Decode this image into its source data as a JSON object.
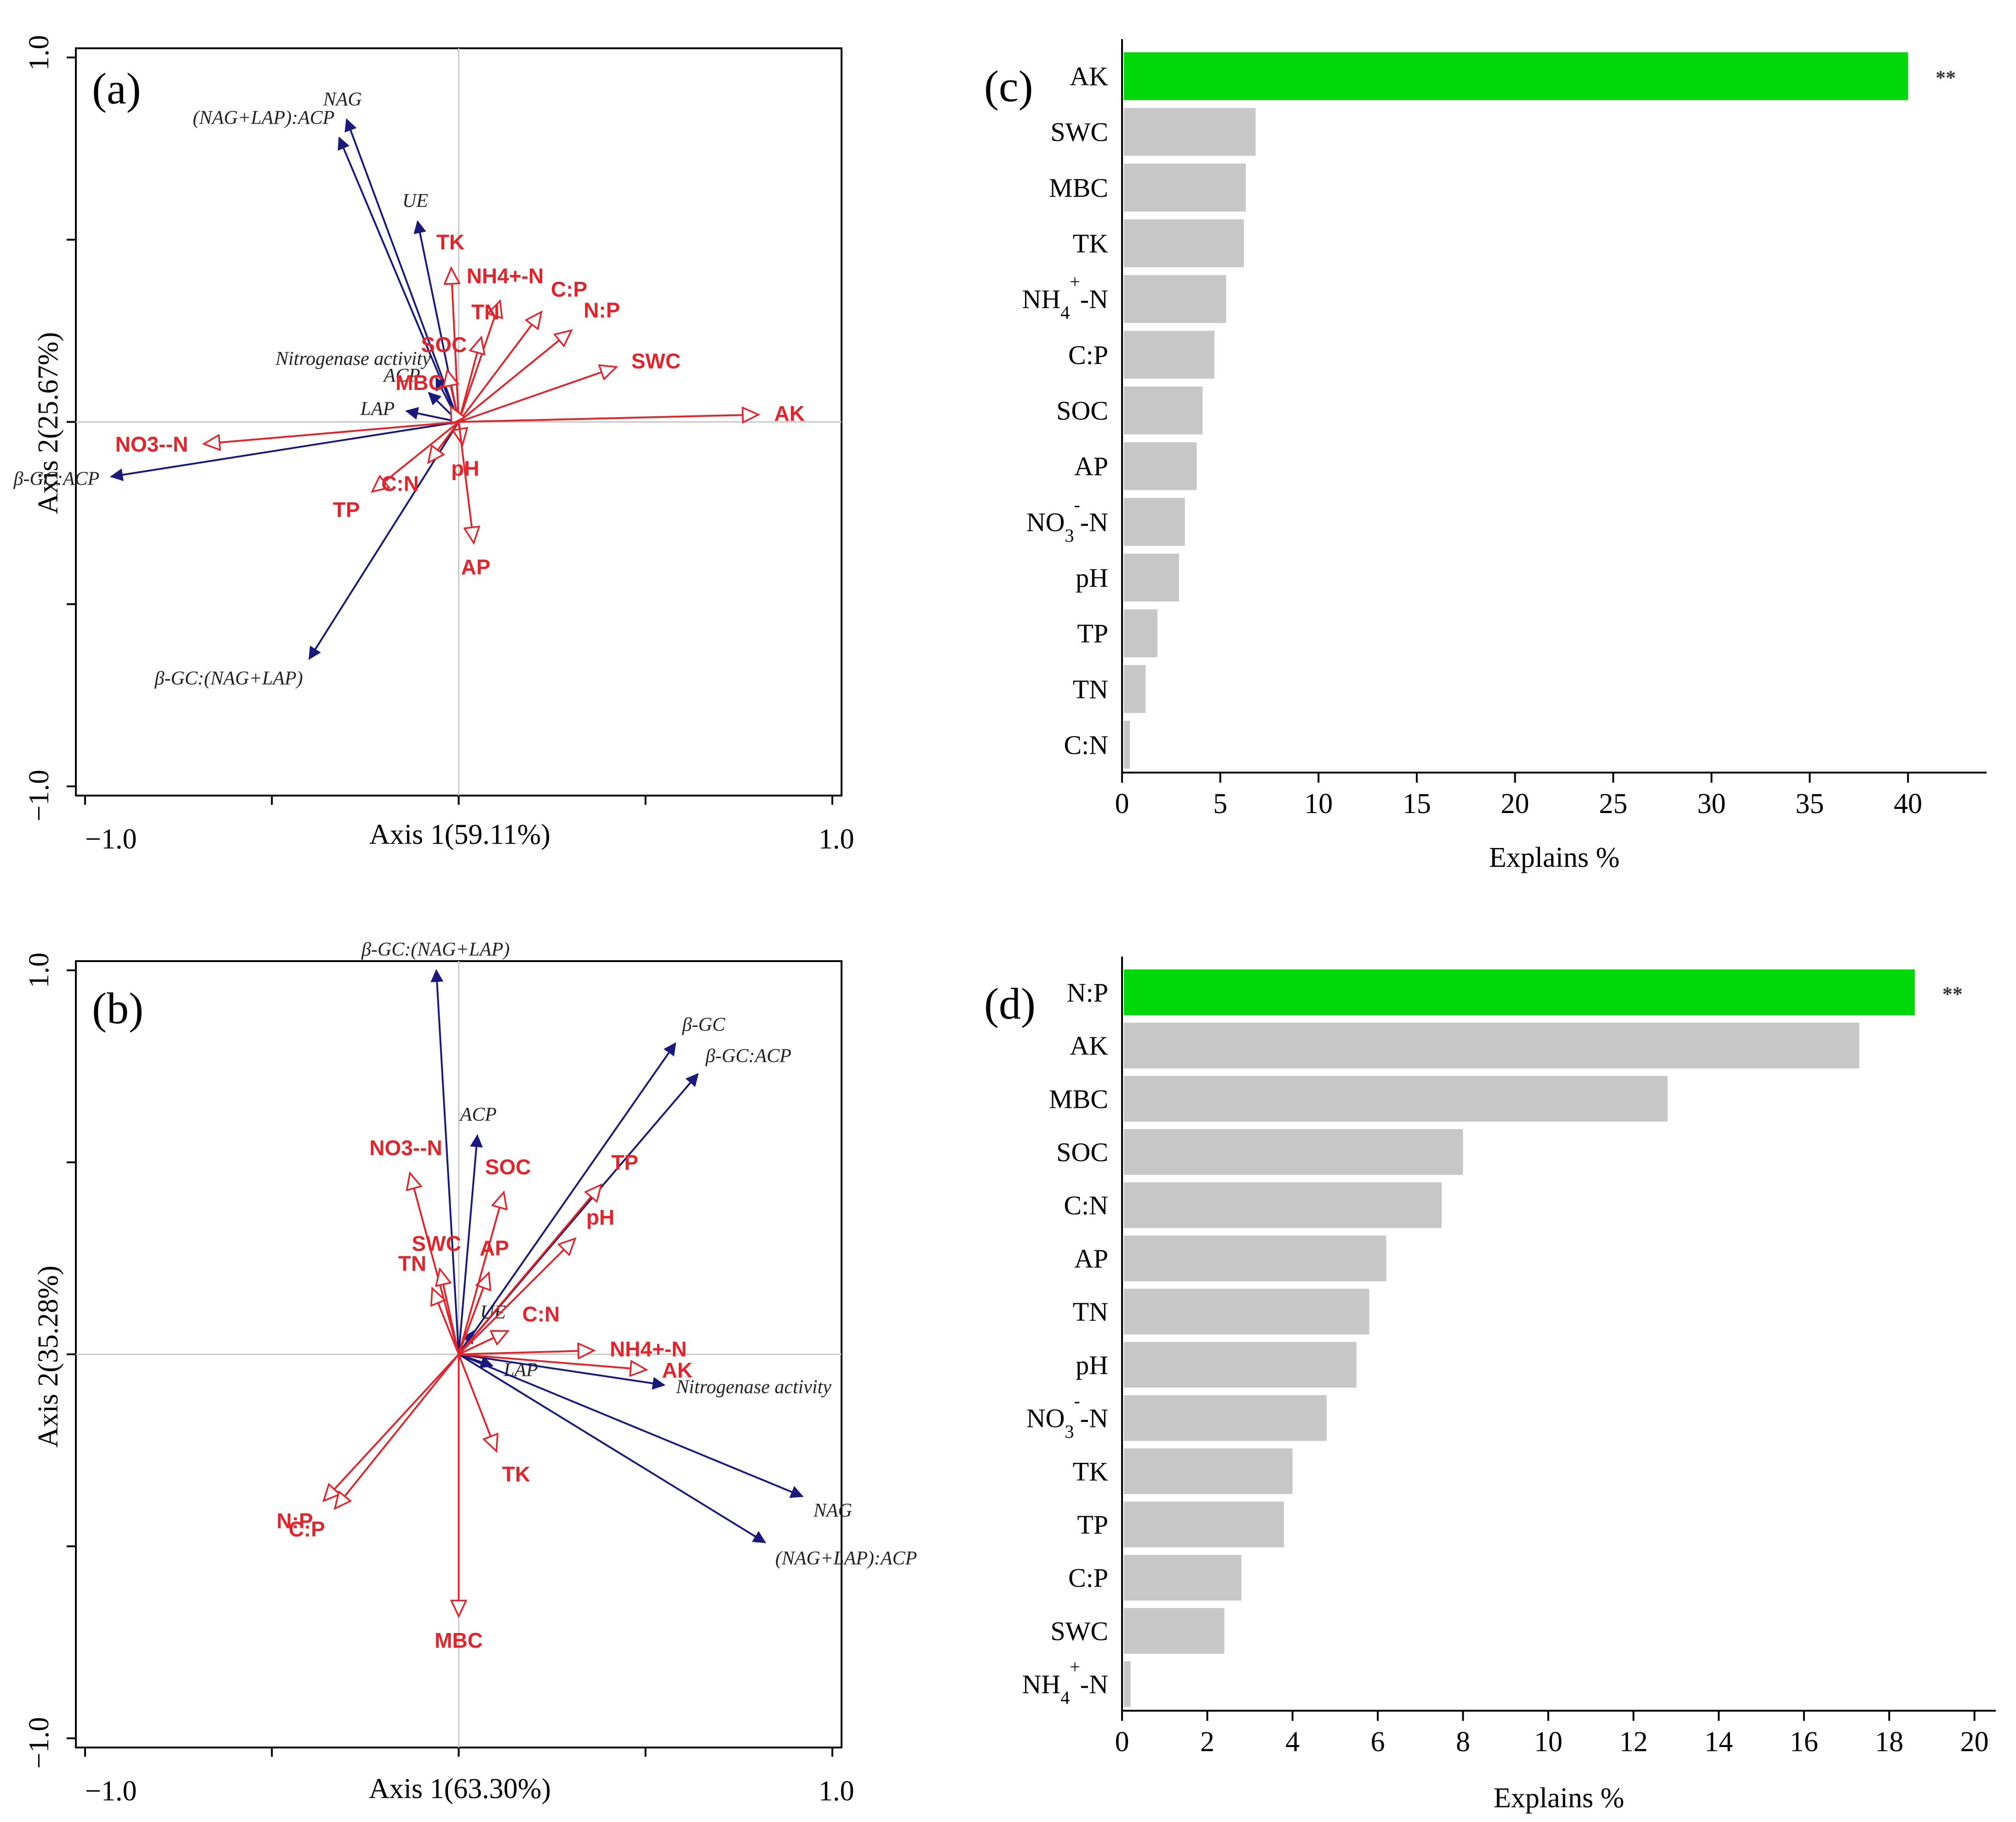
{
  "colors": {
    "env_arrow": "#e0262d",
    "enzyme_arrow": "#1a1a7a",
    "bar_highlight": "#00d80a",
    "bar_default": "#c7c7c7",
    "axis": "#000000",
    "crosshair": "#c8c8c8"
  },
  "chart_data": [
    {
      "id": "a",
      "type": "scatter",
      "subtype": "rda-biplot",
      "panel_label": "(a)",
      "xlabel": "Axis 1(59.11%)",
      "ylabel": "Axis 2(25.67%)",
      "xlim": [
        -1.0,
        1.0
      ],
      "ylim": [
        -1.0,
        1.0
      ],
      "tick_labels": {
        "x_min": "−1.0",
        "x_max": "1.0",
        "y_min": "−1.0",
        "y_max": "1.0"
      },
      "env_vectors": [
        {
          "name": "AK",
          "x": 0.8,
          "y": 0.02
        },
        {
          "name": "SWC",
          "x": 0.42,
          "y": 0.15
        },
        {
          "name": "N:P",
          "x": 0.3,
          "y": 0.25
        },
        {
          "name": "C:P",
          "x": 0.22,
          "y": 0.3
        },
        {
          "name": "NH4+-N",
          "x": 0.11,
          "y": 0.33
        },
        {
          "name": "TN",
          "x": 0.06,
          "y": 0.23
        },
        {
          "name": "TK",
          "x": -0.02,
          "y": 0.42
        },
        {
          "name": "SOC",
          "x": -0.03,
          "y": 0.14
        },
        {
          "name": "MBC",
          "x": -0.02,
          "y": 0.04
        },
        {
          "name": "NO3--N",
          "x": -0.68,
          "y": -0.06
        },
        {
          "name": "TP",
          "x": -0.23,
          "y": -0.19
        },
        {
          "name": "C:N",
          "x": -0.08,
          "y": -0.11
        },
        {
          "name": "pH",
          "x": 0.01,
          "y": -0.06
        },
        {
          "name": "AP",
          "x": 0.04,
          "y": -0.33
        }
      ],
      "enzyme_vectors": [
        {
          "name": "NAG",
          "x": -0.3,
          "y": 0.83
        },
        {
          "name": "(NAG+LAP):ACP",
          "x": -0.32,
          "y": 0.78
        },
        {
          "name": "UE",
          "x": -0.11,
          "y": 0.55
        },
        {
          "name": "Nitrogenase activity",
          "x": -0.06,
          "y": 0.12
        },
        {
          "name": "ACP",
          "x": -0.08,
          "y": 0.08
        },
        {
          "name": "LAP",
          "x": -0.14,
          "y": 0.03
        },
        {
          "name": "β-GC:ACP",
          "x": -0.93,
          "y": -0.15
        },
        {
          "name": "β-GC:(NAG+LAP)",
          "x": -0.4,
          "y": -0.65
        }
      ]
    },
    {
      "id": "b",
      "type": "scatter",
      "subtype": "rda-biplot",
      "panel_label": "(b)",
      "xlabel": "Axis 1(63.30%)",
      "ylabel": "Axis 2(35.28%)",
      "xlim": [
        -1.0,
        1.0
      ],
      "ylim": [
        -1.0,
        1.0
      ],
      "tick_labels": {
        "x_min": "−1.0",
        "x_max": "1.0",
        "y_min": "−1.0",
        "y_max": "1.0"
      },
      "env_vectors": [
        {
          "name": "TP",
          "x": 0.38,
          "y": 0.44
        },
        {
          "name": "pH",
          "x": 0.31,
          "y": 0.3
        },
        {
          "name": "NH4+-N",
          "x": 0.36,
          "y": 0.01
        },
        {
          "name": "AK",
          "x": 0.5,
          "y": -0.04
        },
        {
          "name": "C:N",
          "x": 0.13,
          "y": 0.06
        },
        {
          "name": "AP",
          "x": 0.08,
          "y": 0.21
        },
        {
          "name": "SOC",
          "x": 0.12,
          "y": 0.42
        },
        {
          "name": "NO3--N",
          "x": -0.13,
          "y": 0.47
        },
        {
          "name": "SWC",
          "x": -0.05,
          "y": 0.22
        },
        {
          "name": "TN",
          "x": -0.07,
          "y": 0.17
        },
        {
          "name": "TK",
          "x": 0.1,
          "y": -0.25
        },
        {
          "name": "N:P",
          "x": -0.36,
          "y": -0.38
        },
        {
          "name": "C:P",
          "x": -0.33,
          "y": -0.4
        },
        {
          "name": "MBC",
          "x": 0.0,
          "y": -0.68
        }
      ],
      "enzyme_vectors": [
        {
          "name": "β-GC:(NAG+LAP)",
          "x": -0.06,
          "y": 1.0
        },
        {
          "name": "β-GC",
          "x": 0.58,
          "y": 0.81
        },
        {
          "name": "β-GC:ACP",
          "x": 0.64,
          "y": 0.73
        },
        {
          "name": "ACP",
          "x": 0.05,
          "y": 0.57
        },
        {
          "name": "UE",
          "x": 0.04,
          "y": 0.06
        },
        {
          "name": "LAP",
          "x": 0.09,
          "y": -0.03
        },
        {
          "name": "Nitrogenase activity",
          "x": 0.55,
          "y": -0.08
        },
        {
          "name": "NAG",
          "x": 0.92,
          "y": -0.37
        },
        {
          "name": "(NAG+LAP):ACP",
          "x": 0.82,
          "y": -0.49
        }
      ]
    },
    {
      "id": "c",
      "type": "bar",
      "orientation": "horizontal",
      "panel_label": "(c)",
      "xlabel": "Explains %",
      "ylabel": "",
      "xlim": [
        0,
        44
      ],
      "xticks": [
        0,
        5,
        10,
        15,
        20,
        25,
        30,
        35,
        40
      ],
      "categories": [
        "AK",
        "SWC",
        "MBC",
        "TK",
        "NH4+-N",
        "C:P",
        "SOC",
        "AP",
        "NO3--N",
        "pH",
        "TP",
        "TN",
        "C:N"
      ],
      "category_labels": [
        {
          "main": "AK"
        },
        {
          "main": "SWC"
        },
        {
          "main": "MBC"
        },
        {
          "main": "TK"
        },
        {
          "main": "NH",
          "sub": "4",
          "sup": "+",
          "suffix": "-N"
        },
        {
          "main": "C:P"
        },
        {
          "main": "SOC"
        },
        {
          "main": "AP"
        },
        {
          "main": "NO",
          "sub": "3",
          "sup": "-",
          "suffix": "-N"
        },
        {
          "main": "pH"
        },
        {
          "main": "TP"
        },
        {
          "main": "TN"
        },
        {
          "main": "C:N"
        }
      ],
      "values": [
        40.0,
        6.8,
        6.3,
        6.2,
        5.3,
        4.7,
        4.1,
        3.8,
        3.2,
        2.9,
        1.8,
        1.2,
        0.4
      ],
      "highlight_index": 0,
      "significance": "**"
    },
    {
      "id": "d",
      "type": "bar",
      "orientation": "horizontal",
      "panel_label": "(d)",
      "xlabel": "Explains %",
      "ylabel": "",
      "xlim": [
        0,
        20.5
      ],
      "xticks": [
        0,
        2,
        4,
        6,
        8,
        10,
        12,
        14,
        16,
        18,
        20
      ],
      "categories": [
        "N:P",
        "AK",
        "MBC",
        "SOC",
        "C:N",
        "AP",
        "TN",
        "pH",
        "NO3--N",
        "TK",
        "TP",
        "C:P",
        "SWC",
        "NH4+-N"
      ],
      "category_labels": [
        {
          "main": "N:P"
        },
        {
          "main": "AK"
        },
        {
          "main": "MBC"
        },
        {
          "main": "SOC"
        },
        {
          "main": "C:N"
        },
        {
          "main": "AP"
        },
        {
          "main": "TN"
        },
        {
          "main": "pH"
        },
        {
          "main": "NO",
          "sub": "3",
          "sup": "-",
          "suffix": "-N"
        },
        {
          "main": "TK"
        },
        {
          "main": "TP"
        },
        {
          "main": "C:P"
        },
        {
          "main": "SWC"
        },
        {
          "main": "NH",
          "sub": "4",
          "sup": "+",
          "suffix": "-N"
        }
      ],
      "values": [
        18.6,
        17.3,
        12.8,
        8.0,
        7.5,
        6.2,
        5.8,
        5.5,
        4.8,
        4.0,
        3.8,
        2.8,
        2.4,
        0.2
      ],
      "highlight_index": 0,
      "significance": "**"
    }
  ]
}
